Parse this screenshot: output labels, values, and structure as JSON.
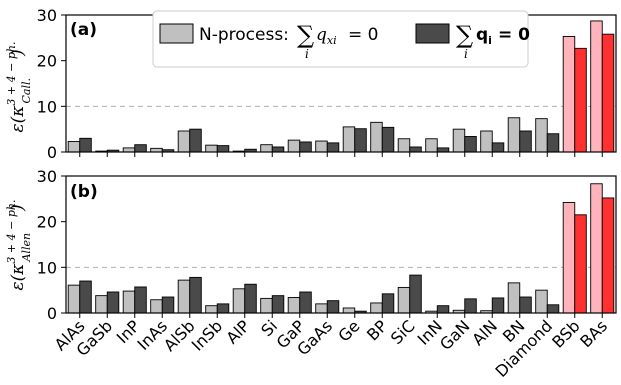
{
  "chart_data": [
    {
      "type": "bar",
      "panel_label": "(a)",
      "ylabel": "ε(κ^{3+4−ph.}_{Call.})",
      "ylim": [
        0,
        30
      ],
      "yticks": [
        0,
        10,
        20,
        30
      ],
      "reference_line": 10,
      "grid": false,
      "legend_position": "top-center",
      "categories": [
        "AlAs",
        "GaSb",
        "InP",
        "InAs",
        "AlSb",
        "InSb",
        "AlP",
        "Si",
        "GaP",
        "GaAs",
        "Ge",
        "BP",
        "SiC",
        "InN",
        "GaN",
        "AlN",
        "BN",
        "Diamond",
        "BSb",
        "BAs"
      ],
      "series": [
        {
          "name": "N-process: Σ_i q_xi = 0",
          "values": [
            2.3,
            0.2,
            0.9,
            0.8,
            4.6,
            1.5,
            0.2,
            1.6,
            2.6,
            2.4,
            5.5,
            6.5,
            2.9,
            2.9,
            5.0,
            4.6,
            7.5,
            7.3,
            25.3,
            28.7
          ]
        },
        {
          "name": "Σ_i q_i = 0",
          "values": [
            3.0,
            0.4,
            1.6,
            0.5,
            5.0,
            1.4,
            0.6,
            1.1,
            2.2,
            2.0,
            5.1,
            5.4,
            1.1,
            0.9,
            3.4,
            2.0,
            4.6,
            4.0,
            22.7,
            25.8
          ]
        }
      ]
    },
    {
      "type": "bar",
      "panel_label": "(b)",
      "ylabel": "ε(κ^{3+4−ph.}_{Allen})",
      "ylim": [
        0,
        30
      ],
      "yticks": [
        0,
        10,
        20,
        30
      ],
      "reference_line": 10,
      "grid": false,
      "categories": [
        "AlAs",
        "GaSb",
        "InP",
        "InAs",
        "AlSb",
        "InSb",
        "AlP",
        "Si",
        "GaP",
        "GaAs",
        "Ge",
        "BP",
        "SiC",
        "InN",
        "GaN",
        "AlN",
        "BN",
        "Diamond",
        "BSb",
        "BAs"
      ],
      "series": [
        {
          "name": "N-process: Σ_i q_xi = 0",
          "values": [
            6.1,
            3.8,
            4.8,
            2.9,
            7.2,
            1.6,
            5.3,
            3.2,
            3.4,
            2.0,
            1.1,
            2.2,
            5.6,
            0.4,
            0.6,
            0.5,
            6.6,
            5.0,
            24.2,
            28.3
          ]
        },
        {
          "name": "Σ_i q_i = 0",
          "values": [
            7.0,
            4.6,
            5.7,
            3.5,
            7.8,
            2.0,
            6.3,
            3.8,
            4.6,
            2.7,
            0.4,
            4.2,
            8.3,
            1.6,
            3.1,
            3.3,
            3.5,
            1.8,
            21.5,
            25.2
          ]
        }
      ]
    }
  ],
  "legend": {
    "series1_prefix": "N-process:",
    "series1_sum_sub": "i",
    "series1_expr_q": "q",
    "series1_expr_sub": "xi",
    "series1_expr_rhs": "= 0",
    "series2_sum_sub": "i",
    "series2_expr": "q",
    "series2_expr_sub": "i",
    "series2_expr_rhs": "= 0"
  },
  "labels": {
    "panel_a": "(a)",
    "panel_b": "(b)",
    "ylabel_a_prefix": "ε(κ",
    "ylabel_a_sup": "3 + 4 − ph.",
    "ylabel_a_sub": "Call.",
    "ylabel_b_prefix": "ε(κ",
    "ylabel_b_sup": "3 + 4 − ph.",
    "ylabel_b_sub": "Allen",
    "ylabel_suffix": ")"
  },
  "colors": {
    "n_process_normal": "#c0c0c0",
    "total_normal": "#4a4a4a",
    "n_process_highlight": "#ffb3bb",
    "total_highlight": "#ff3030",
    "reference_line": "#b0b0b0",
    "edge": "#000000"
  },
  "highlight_categories": [
    "BSb",
    "BAs"
  ]
}
